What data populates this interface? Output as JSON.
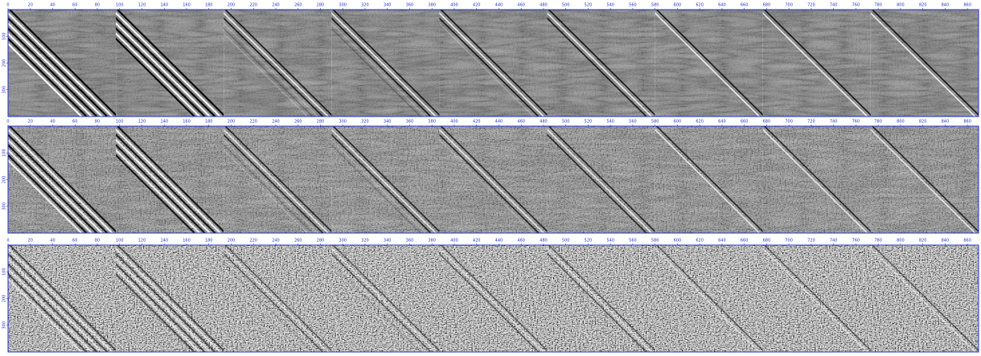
{
  "panels": [
    {
      "xlim": [
        0,
        870
      ],
      "xticks": [
        0,
        20,
        40,
        60,
        80,
        100,
        120,
        140,
        160,
        180,
        200,
        220,
        240,
        260,
        280,
        300,
        320,
        340,
        360,
        380,
        400,
        420,
        440,
        460,
        480,
        500,
        520,
        540,
        560,
        580,
        600,
        620,
        640,
        660,
        680,
        700,
        720,
        740,
        760,
        780,
        800,
        820,
        840,
        860
      ],
      "ylim": [
        0,
        400
      ],
      "yticks": [
        100,
        200,
        300
      ]
    },
    {
      "xlim": [
        0,
        870
      ],
      "xticks": [
        0,
        20,
        40,
        60,
        80,
        100,
        120,
        140,
        160,
        180,
        200,
        220,
        240,
        260,
        280,
        300,
        320,
        340,
        360,
        380,
        400,
        420,
        440,
        460,
        480,
        500,
        520,
        540,
        560,
        580,
        600,
        620,
        640,
        660,
        680,
        700,
        720,
        740,
        760,
        780,
        800,
        820,
        840,
        860
      ],
      "ylim": [
        0,
        400
      ],
      "yticks": [
        100,
        200,
        300
      ]
    },
    {
      "xlim": [
        0,
        870
      ],
      "xticks": [
        0,
        20,
        40,
        60,
        80,
        100,
        120,
        140,
        160,
        180,
        200,
        220,
        240,
        260,
        280,
        300,
        320,
        340,
        360,
        380,
        400,
        420,
        440,
        460,
        480,
        500,
        520,
        540,
        560,
        580,
        600,
        620,
        640,
        660,
        680,
        700,
        720,
        740,
        760,
        780,
        800,
        820,
        840,
        860
      ],
      "ylim": [
        0,
        400
      ],
      "yticks": [
        100,
        200,
        300
      ]
    }
  ]
}
